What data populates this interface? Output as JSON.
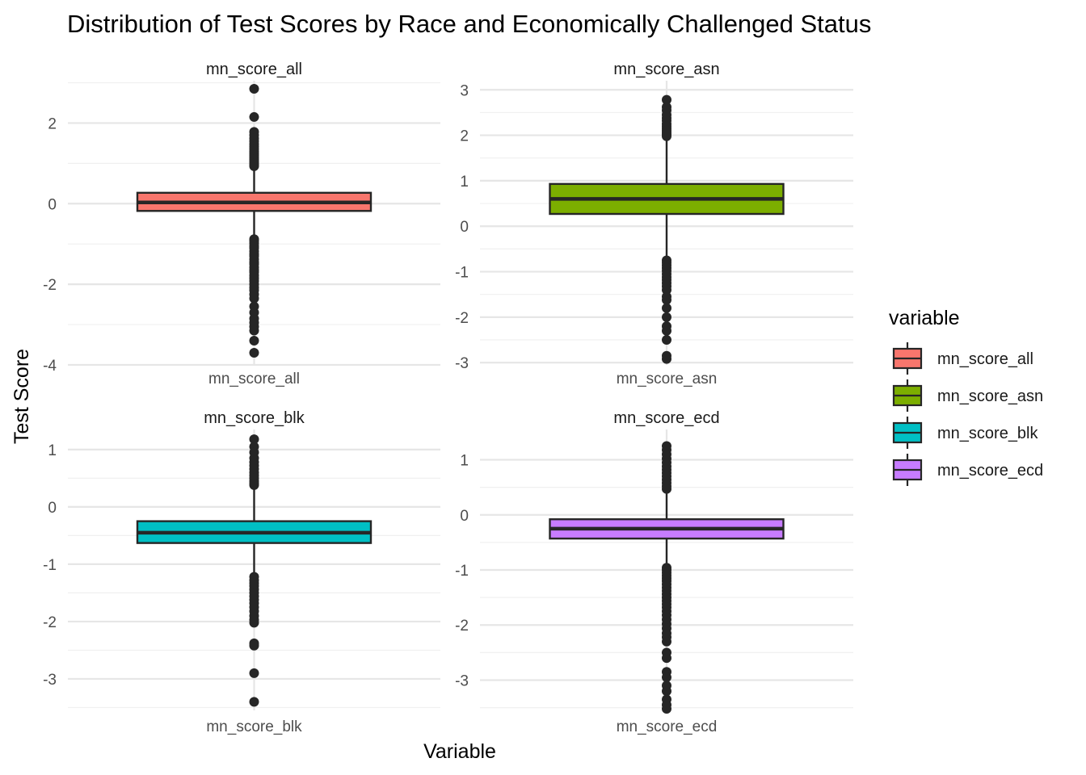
{
  "chart_data": {
    "type": "boxplot",
    "title": "Distribution of Test Scores by Race and Economically Challenged Status",
    "xlabel": "Variable",
    "ylabel": "Test Score",
    "legend": {
      "title": "variable",
      "position": "right",
      "entries": [
        {
          "label": "mn_score_all",
          "color": "#F8766D"
        },
        {
          "label": "mn_score_asn",
          "color": "#7CAE00"
        },
        {
          "label": "mn_score_blk",
          "color": "#00BFC4"
        },
        {
          "label": "mn_score_ecd",
          "color": "#C77CFF"
        }
      ]
    },
    "grid": true,
    "panels": [
      {
        "strip": "mn_score_all",
        "category": "mn_score_all",
        "color": "#F8766D",
        "ylim": [
          -4.0,
          3.05
        ],
        "yticks": [
          2,
          0,
          -2,
          -4
        ],
        "ytick_labels": [
          "2",
          "0",
          "-2",
          "-4"
        ],
        "minor_ticks": [
          3,
          1,
          -1,
          -3
        ],
        "box": {
          "q1": -0.18,
          "median": 0.03,
          "q3": 0.27,
          "whisker_low": -0.86,
          "whisker_high": 0.92
        },
        "outliers": [
          2.85,
          2.15,
          1.78,
          1.7,
          1.62,
          1.55,
          1.48,
          1.42,
          1.36,
          1.3,
          1.25,
          1.2,
          1.15,
          1.1,
          1.05,
          1.0,
          0.96,
          0.93,
          -0.88,
          -0.92,
          -0.98,
          -1.05,
          -1.1,
          -1.18,
          -1.25,
          -1.3,
          -1.38,
          -1.45,
          -1.5,
          -1.58,
          -1.65,
          -1.7,
          -1.78,
          -1.85,
          -1.92,
          -2.0,
          -2.08,
          -2.15,
          -2.25,
          -2.35,
          -2.55,
          -2.7,
          -2.85,
          -2.95,
          -3.05,
          -3.15,
          -3.4,
          -3.7
        ]
      },
      {
        "strip": "mn_score_asn",
        "category": "mn_score_asn",
        "color": "#7CAE00",
        "ylim": [
          -3.05,
          3.2
        ],
        "yticks": [
          3,
          2,
          1,
          0,
          -1,
          -2,
          -3
        ],
        "ytick_labels": [
          "3",
          "2",
          "1",
          "0",
          "-1",
          "-2",
          "-3"
        ],
        "minor_ticks": [
          2.5,
          1.5,
          0.5,
          -0.5,
          -1.5,
          -2.5
        ],
        "box": {
          "q1": 0.27,
          "median": 0.6,
          "q3": 0.93,
          "whisker_low": -0.72,
          "whisker_high": 1.95
        },
        "outliers": [
          2.78,
          2.62,
          2.55,
          2.45,
          2.38,
          2.32,
          2.25,
          2.2,
          2.15,
          2.1,
          2.06,
          2.02,
          1.98,
          -0.75,
          -0.8,
          -0.86,
          -0.92,
          -0.98,
          -1.05,
          -1.12,
          -1.18,
          -1.25,
          -1.32,
          -1.4,
          -1.55,
          -1.62,
          -1.8,
          -2.0,
          -2.2,
          -2.3,
          -2.5,
          -2.85,
          -2.92
        ]
      },
      {
        "strip": "mn_score_blk",
        "category": "mn_score_blk",
        "color": "#00BFC4",
        "ylim": [
          -3.55,
          1.35
        ],
        "yticks": [
          1,
          0,
          -1,
          -2,
          -3
        ],
        "ytick_labels": [
          "1",
          "0",
          "-1",
          "-2",
          "-3"
        ],
        "minor_ticks": [
          0.5,
          -0.5,
          -1.5,
          -2.5,
          -3.5
        ],
        "box": {
          "q1": -0.63,
          "median": -0.45,
          "q3": -0.25,
          "whisker_low": -1.2,
          "whisker_high": 0.35
        },
        "outliers": [
          1.18,
          1.05,
          0.95,
          0.85,
          0.78,
          0.72,
          0.66,
          0.6,
          0.55,
          0.5,
          0.45,
          0.41,
          0.38,
          -1.22,
          -1.28,
          -1.33,
          -1.38,
          -1.44,
          -1.5,
          -1.56,
          -1.62,
          -1.68,
          -1.75,
          -1.82,
          -1.9,
          -1.97,
          -2.02,
          -2.38,
          -2.42,
          -2.9,
          -3.4
        ]
      },
      {
        "strip": "mn_score_ecd",
        "category": "mn_score_ecd",
        "color": "#C77CFF",
        "ylim": [
          -3.55,
          1.55
        ],
        "yticks": [
          1,
          0,
          -1,
          -2,
          -3
        ],
        "ytick_labels": [
          "1",
          "0",
          "-1",
          "-2",
          "-3"
        ],
        "minor_ticks": [
          0.5,
          -0.5,
          -1.5,
          -2.5,
          -3.5
        ],
        "box": {
          "q1": -0.43,
          "median": -0.25,
          "q3": -0.08,
          "whisker_low": -0.93,
          "whisker_high": 0.43
        },
        "outliers": [
          1.25,
          1.18,
          1.1,
          1.02,
          0.95,
          0.88,
          0.82,
          0.76,
          0.7,
          0.64,
          0.58,
          0.52,
          0.47,
          -0.96,
          -1.0,
          -1.05,
          -1.1,
          -1.15,
          -1.2,
          -1.26,
          -1.32,
          -1.38,
          -1.44,
          -1.5,
          -1.56,
          -1.62,
          -1.68,
          -1.75,
          -1.82,
          -1.9,
          -1.98,
          -2.06,
          -2.15,
          -2.22,
          -2.3,
          -2.5,
          -2.6,
          -2.85,
          -2.95,
          -3.1,
          -3.2,
          -3.35,
          -3.45,
          -3.52
        ]
      }
    ]
  }
}
